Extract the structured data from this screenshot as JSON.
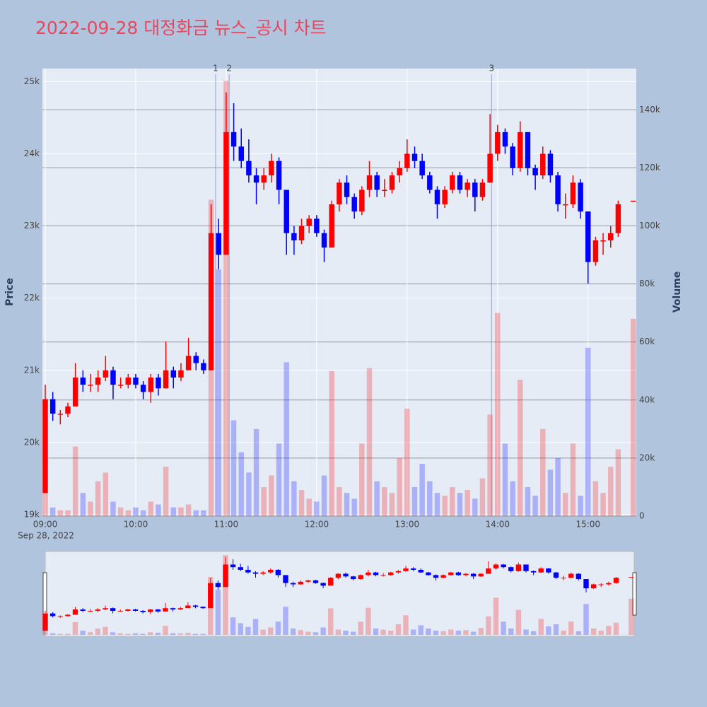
{
  "chart_data": {
    "type": "candlestick",
    "title": "2022-09-28 대정화금 뉴스_공시 차트",
    "y_title": "Price",
    "y2_title": "Volume",
    "date_label": "Sep 28, 2022",
    "increasing_color": "#ff0000",
    "decreasing_color": "#0000ff",
    "x": [
      "09:00",
      "09:05",
      "09:10",
      "09:15",
      "09:20",
      "09:25",
      "09:30",
      "09:35",
      "09:40",
      "09:45",
      "09:50",
      "09:55",
      "10:00",
      "10:05",
      "10:10",
      "10:15",
      "10:20",
      "10:25",
      "10:30",
      "10:35",
      "10:40",
      "10:45",
      "10:50",
      "10:55",
      "11:00",
      "11:05",
      "11:10",
      "11:15",
      "11:20",
      "11:25",
      "11:30",
      "11:35",
      "11:40",
      "11:45",
      "11:50",
      "11:55",
      "12:00",
      "12:05",
      "12:10",
      "12:15",
      "12:20",
      "12:25",
      "12:30",
      "12:35",
      "12:40",
      "12:45",
      "12:50",
      "12:55",
      "13:00",
      "13:05",
      "13:10",
      "13:15",
      "13:20",
      "13:25",
      "13:30",
      "13:35",
      "13:40",
      "13:45",
      "13:50",
      "13:55",
      "14:00",
      "14:05",
      "14:10",
      "14:15",
      "14:20",
      "14:25",
      "14:30",
      "14:35",
      "14:40",
      "14:45",
      "14:50",
      "14:55",
      "15:00",
      "15:05",
      "15:10",
      "15:15",
      "15:20",
      "15:30"
    ],
    "open": [
      19300,
      20600,
      20400,
      20400,
      20500,
      20900,
      20800,
      20800,
      20900,
      21000,
      20800,
      20800,
      20900,
      20800,
      20700,
      20900,
      20750,
      21000,
      20900,
      21000,
      21200,
      21100,
      21000,
      22900,
      22600,
      24300,
      24100,
      23900,
      23700,
      23600,
      23700,
      23900,
      23500,
      22900,
      22800,
      23000,
      23100,
      22900,
      22700,
      23300,
      23600,
      23400,
      23200,
      23500,
      23700,
      23500,
      23500,
      23700,
      23800,
      24000,
      23900,
      23700,
      23500,
      23300,
      23500,
      23700,
      23500,
      23600,
      23400,
      23600,
      24000,
      24300,
      24100,
      23800,
      24300,
      23800,
      23700,
      24000,
      23700,
      23300,
      23300,
      23600,
      23200,
      22500,
      22800,
      22800,
      22900,
      23350
    ],
    "high": [
      20800,
      20700,
      20450,
      20550,
      21100,
      21000,
      20950,
      21000,
      21200,
      21050,
      20900,
      20950,
      20950,
      20850,
      20950,
      20950,
      21400,
      21050,
      21100,
      21450,
      21250,
      21150,
      23300,
      23100,
      24850,
      24700,
      24350,
      24200,
      23800,
      23800,
      24000,
      23950,
      23500,
      23000,
      23100,
      23150,
      23150,
      22950,
      23350,
      23650,
      23700,
      23450,
      23550,
      23900,
      23750,
      23650,
      23750,
      23900,
      24200,
      24100,
      24000,
      23750,
      23550,
      23550,
      23750,
      23750,
      23650,
      23650,
      23650,
      24550,
      24400,
      24350,
      24150,
      24450,
      24300,
      23850,
      24100,
      24050,
      23750,
      23450,
      23700,
      23650,
      23200,
      22850,
      22900,
      23000,
      23350,
      23350
    ],
    "low": [
      19300,
      20300,
      20250,
      20350,
      20500,
      20700,
      20700,
      20700,
      20850,
      20600,
      20750,
      20750,
      20750,
      20600,
      20550,
      20650,
      20750,
      20750,
      20850,
      21000,
      21000,
      20950,
      21000,
      22400,
      22600,
      23900,
      23800,
      23600,
      23300,
      23500,
      23600,
      23300,
      22600,
      22600,
      22750,
      22900,
      22850,
      22500,
      22700,
      23200,
      23300,
      23100,
      23150,
      23400,
      23400,
      23400,
      23450,
      23600,
      23750,
      23800,
      23650,
      23450,
      23100,
      23250,
      23450,
      23450,
      23400,
      23200,
      23350,
      23600,
      23900,
      24000,
      23700,
      23750,
      23700,
      23500,
      23650,
      23600,
      23200,
      23100,
      23250,
      23100,
      22200,
      22450,
      22600,
      22700,
      22850,
      23350
    ],
    "close": [
      20600,
      20400,
      20400,
      20500,
      20900,
      20800,
      20800,
      20900,
      21000,
      20800,
      20800,
      20900,
      20800,
      20700,
      20900,
      20750,
      21000,
      20900,
      21000,
      21200,
      21100,
      21000,
      22900,
      22600,
      24300,
      24100,
      23900,
      23700,
      23600,
      23700,
      23900,
      23500,
      22900,
      22800,
      23000,
      23100,
      22900,
      22700,
      23300,
      23600,
      23400,
      23200,
      23500,
      23700,
      23500,
      23500,
      23700,
      23800,
      24000,
      23900,
      23700,
      23500,
      23300,
      23500,
      23700,
      23500,
      23600,
      23400,
      23600,
      24000,
      24300,
      24100,
      23800,
      24300,
      23800,
      23700,
      24000,
      23700,
      23300,
      23300,
      23600,
      23200,
      22500,
      22800,
      22800,
      22900,
      23300,
      23350
    ],
    "volume": [
      8000,
      3000,
      2000,
      2000,
      24000,
      8000,
      5000,
      12000,
      15000,
      5000,
      3000,
      2000,
      3000,
      2000,
      5000,
      4000,
      17000,
      3000,
      3000,
      4000,
      2000,
      2000,
      109000,
      85000,
      150000,
      33000,
      22000,
      15000,
      30000,
      10000,
      14000,
      25000,
      53000,
      12000,
      9000,
      6000,
      5000,
      14000,
      50000,
      10000,
      8000,
      6000,
      25000,
      51000,
      12000,
      10000,
      8000,
      20000,
      37000,
      10000,
      18000,
      12000,
      8000,
      7000,
      10000,
      8000,
      9000,
      6000,
      13000,
      35000,
      70000,
      25000,
      12000,
      47000,
      10000,
      7000,
      30000,
      16000,
      20000,
      8000,
      25000,
      7000,
      58000,
      12000,
      8000,
      17000,
      23000,
      68000
    ],
    "xlim": [
      "09:00",
      "15:32"
    ],
    "xticks": [
      "09:00",
      "10:00",
      "11:00",
      "12:00",
      "13:00",
      "14:00",
      "15:00"
    ],
    "ylim": [
      18980,
      25180
    ],
    "yticks": [
      {
        "value": 19000,
        "label": "19k"
      },
      {
        "value": 20000,
        "label": "20k"
      },
      {
        "value": 21000,
        "label": "21k"
      },
      {
        "value": 22000,
        "label": "22k"
      },
      {
        "value": 23000,
        "label": "23k"
      },
      {
        "value": 24000,
        "label": "24k"
      },
      {
        "value": 25000,
        "label": "25k"
      }
    ],
    "y2lim": [
      0,
      154200
    ],
    "y2ticks": [
      0,
      {
        "value": 20000,
        "label": "20k"
      },
      {
        "value": 40000,
        "label": "40k"
      },
      {
        "value": 60000,
        "label": "60k"
      },
      {
        "value": 80000,
        "label": "80k"
      },
      {
        "value": 100000,
        "label": "100k"
      },
      {
        "value": 120000,
        "label": "120k"
      },
      {
        "value": 140000,
        "label": "140k"
      }
    ],
    "annotations": [
      {
        "x": "10:53",
        "text": "1"
      },
      {
        "x": "11:02",
        "text": "2"
      },
      {
        "x": "13:56",
        "text": "3"
      }
    ],
    "grid": true,
    "rangeslider": true
  }
}
